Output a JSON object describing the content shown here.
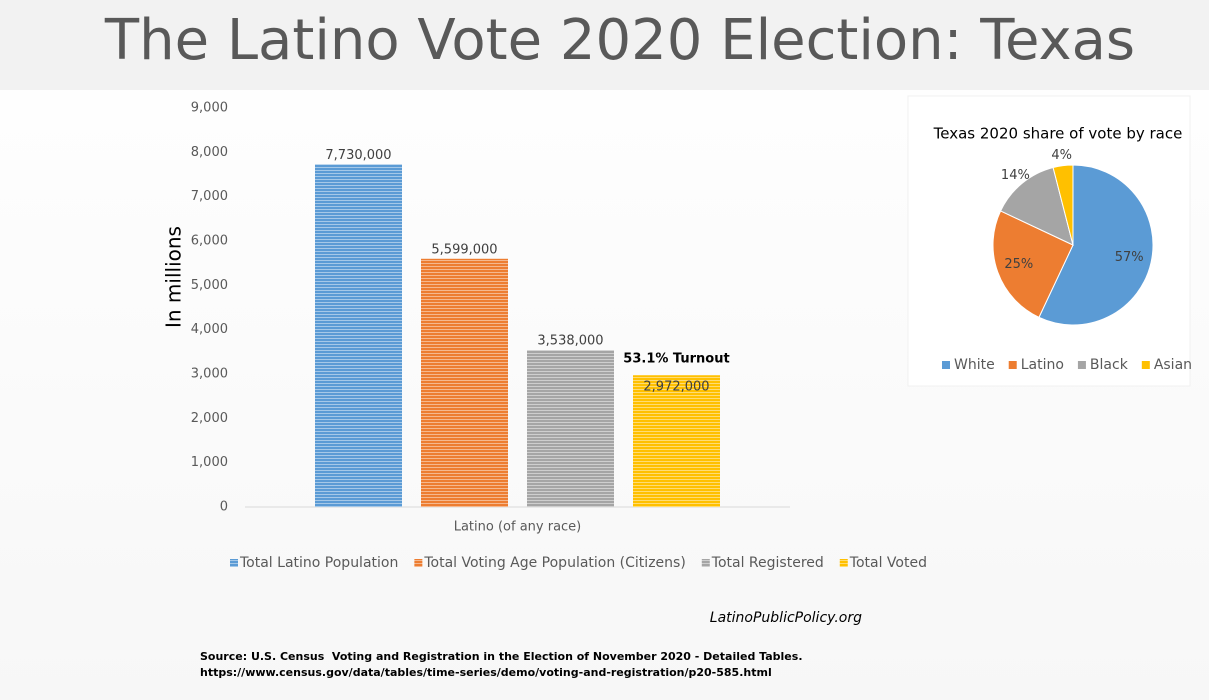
{
  "header": {
    "title": "The Latino Vote 2020 Election: Texas"
  },
  "chart_data": [
    {
      "type": "bar",
      "y_label": "In millions",
      "categories": [
        "Latino (of any race)"
      ],
      "series": [
        {
          "name": "Total Latino Population",
          "color": "#5b9bd5",
          "values": [
            7730
          ],
          "value_labels": [
            "7,730,000"
          ]
        },
        {
          "name": "Total Voting Age Population (Citizens)",
          "color": "#ed7d31",
          "values": [
            5599
          ],
          "value_labels": [
            "5,599,000"
          ]
        },
        {
          "name": "Total Registered",
          "color": "#a5a5a5",
          "values": [
            3538
          ],
          "value_labels": [
            "3,538,000"
          ]
        },
        {
          "name": "Total Voted",
          "color": "#ffc000",
          "values": [
            2972
          ],
          "value_labels": [
            "2,972,000"
          ]
        }
      ],
      "annotations": [
        "53.1% Turnout"
      ],
      "ylim": [
        0,
        9000
      ],
      "yticks": [
        0,
        {
          "value": 1000,
          "label": "1,000"
        },
        {
          "value": 2000,
          "label": "2,000"
        },
        {
          "value": 3000,
          "label": "3,000"
        },
        {
          "value": 4000,
          "label": "4,000"
        },
        {
          "value": 5000,
          "label": "5,000"
        },
        {
          "value": 6000,
          "label": "6,000"
        },
        {
          "value": 7000,
          "label": "7,000"
        },
        {
          "value": 8000,
          "label": "8,000"
        },
        {
          "value": 9000,
          "label": "9,000"
        }
      ],
      "legend": "bottom"
    },
    {
      "type": "pie",
      "title": "Texas 2020 share of vote by race",
      "categories": [
        "White",
        "Latino",
        "Black",
        "Asian"
      ],
      "values": [
        57,
        25,
        14,
        4
      ],
      "value_labels": [
        "57%",
        "25%",
        "14%",
        "4%"
      ],
      "colors": [
        "#5b9bd5",
        "#ed7d31",
        "#a5a5a5",
        "#ffc000"
      ],
      "legend": "bottom"
    }
  ],
  "footer": {
    "site": "LatinoPublicPolicy.org",
    "source": [
      "Source: U.S. Census  Voting and Registration in the Election of November 2020 - Detailed Tables.",
      "https://www.census.gov/data/tables/time-series/demo/voting-and-registration/p20-585.html"
    ]
  }
}
